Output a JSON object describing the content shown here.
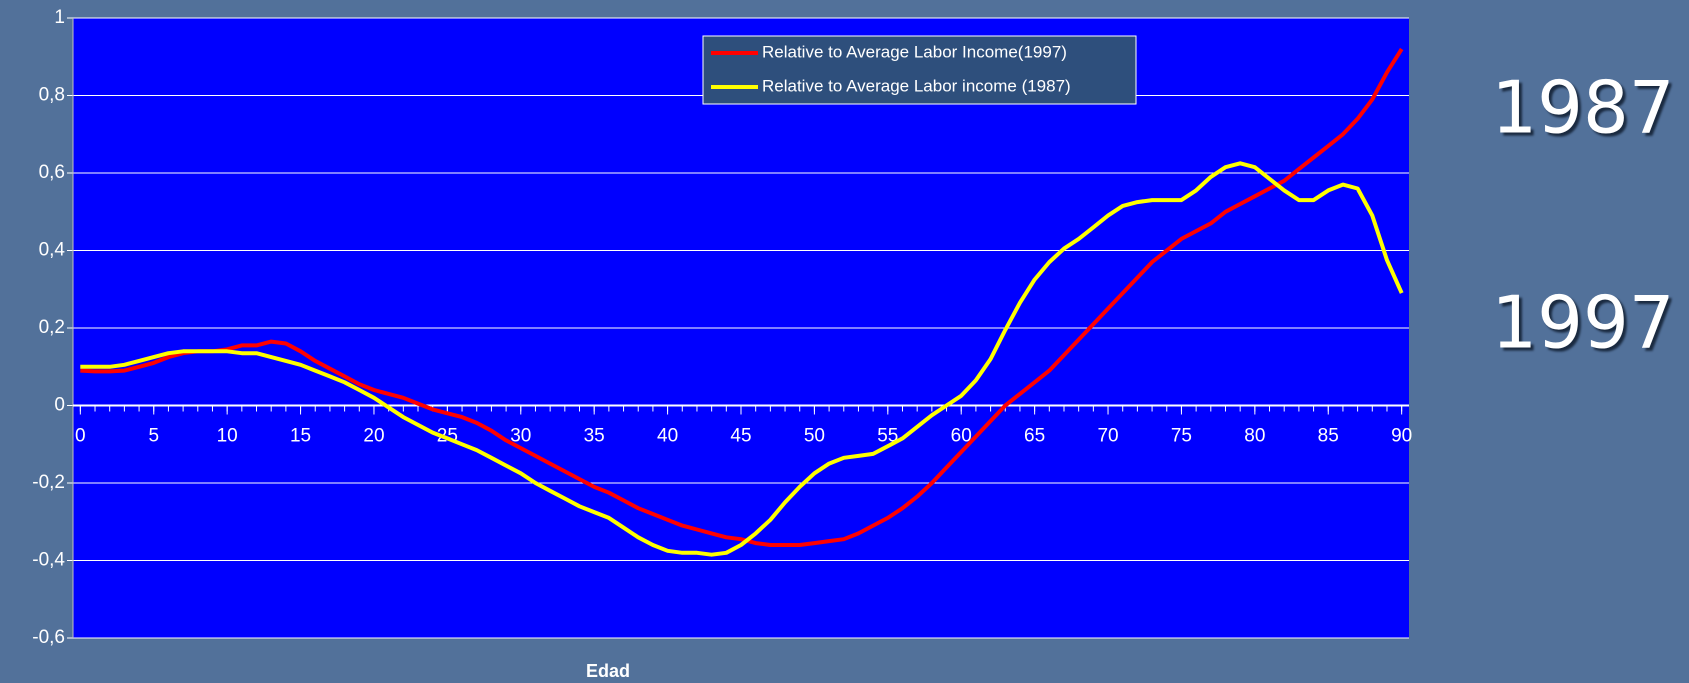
{
  "chart_data": {
    "type": "line",
    "x_label": "Edad",
    "annotations": [
      "1987",
      "1997"
    ],
    "x": [
      0,
      1,
      2,
      3,
      4,
      5,
      6,
      7,
      8,
      9,
      10,
      11,
      12,
      13,
      14,
      15,
      16,
      17,
      18,
      19,
      20,
      21,
      22,
      23,
      24,
      25,
      26,
      27,
      28,
      29,
      30,
      31,
      32,
      33,
      34,
      35,
      36,
      37,
      38,
      39,
      40,
      41,
      42,
      43,
      44,
      45,
      46,
      47,
      48,
      49,
      50,
      51,
      52,
      53,
      54,
      55,
      56,
      57,
      58,
      59,
      60,
      61,
      62,
      63,
      64,
      65,
      66,
      67,
      68,
      69,
      70,
      71,
      72,
      73,
      74,
      75,
      76,
      77,
      78,
      79,
      80,
      81,
      82,
      83,
      84,
      85,
      86,
      87,
      88,
      89,
      90
    ],
    "xlim": [
      -0.5,
      90.5
    ],
    "xticks": [
      0,
      5,
      10,
      15,
      20,
      25,
      30,
      35,
      40,
      45,
      50,
      55,
      60,
      65,
      70,
      75,
      80,
      85,
      90
    ],
    "ylim": [
      -0.6,
      1
    ],
    "yticks": [
      {
        "value": -0.6,
        "label": "-0,6"
      },
      {
        "value": -0.4,
        "label": "-0,4"
      },
      {
        "value": -0.2,
        "label": "-0,2"
      },
      0,
      {
        "value": 0.2,
        "label": "0,2"
      },
      {
        "value": 0.4,
        "label": "0,4"
      },
      {
        "value": 0.6,
        "label": "0,6"
      },
      {
        "value": 0.8,
        "label": "0,8"
      },
      1
    ],
    "grid": true,
    "legend": "upper center",
    "background": "#0000ff",
    "series": [
      {
        "name": "Relative to Average Labor Income(1997)",
        "color": "#ff0000",
        "values": [
          0.09,
          0.088,
          0.088,
          0.09,
          0.1,
          0.11,
          0.125,
          0.135,
          0.14,
          0.14,
          0.145,
          0.155,
          0.155,
          0.165,
          0.16,
          0.14,
          0.115,
          0.095,
          0.075,
          0.055,
          0.04,
          0.03,
          0.02,
          0.005,
          -0.01,
          -0.02,
          -0.03,
          -0.045,
          -0.065,
          -0.09,
          -0.11,
          -0.13,
          -0.15,
          -0.17,
          -0.19,
          -0.21,
          -0.225,
          -0.245,
          -0.265,
          -0.28,
          -0.295,
          -0.31,
          -0.32,
          -0.33,
          -0.34,
          -0.345,
          -0.355,
          -0.36,
          -0.36,
          -0.36,
          -0.355,
          -0.35,
          -0.345,
          -0.33,
          -0.31,
          -0.29,
          -0.265,
          -0.235,
          -0.2,
          -0.16,
          -0.12,
          -0.08,
          -0.04,
          0,
          0.03,
          0.06,
          0.09,
          0.13,
          0.17,
          0.21,
          0.25,
          0.29,
          0.33,
          0.37,
          0.4,
          0.43,
          0.45,
          0.47,
          0.5,
          0.52,
          0.54,
          0.56,
          0.58,
          0.61,
          0.64,
          0.67,
          0.7,
          0.74,
          0.79,
          0.86,
          0.92
        ]
      },
      {
        "name": "Relative to Average Labor income (1987)",
        "color": "#ffff00",
        "values": [
          0.1,
          0.1,
          0.1,
          0.105,
          0.115,
          0.125,
          0.135,
          0.14,
          0.14,
          0.14,
          0.14,
          0.135,
          0.135,
          0.125,
          0.115,
          0.105,
          0.09,
          0.075,
          0.06,
          0.04,
          0.02,
          -0.005,
          -0.03,
          -0.05,
          -0.07,
          -0.085,
          -0.1,
          -0.115,
          -0.135,
          -0.155,
          -0.175,
          -0.2,
          -0.22,
          -0.24,
          -0.26,
          -0.275,
          -0.29,
          -0.315,
          -0.34,
          -0.36,
          -0.375,
          -0.38,
          -0.38,
          -0.385,
          -0.38,
          -0.36,
          -0.33,
          -0.295,
          -0.25,
          -0.21,
          -0.175,
          -0.15,
          -0.135,
          -0.13,
          -0.125,
          -0.105,
          -0.085,
          -0.055,
          -0.025,
          0,
          0.025,
          0.065,
          0.12,
          0.195,
          0.265,
          0.325,
          0.37,
          0.405,
          0.43,
          0.46,
          0.49,
          0.515,
          0.525,
          0.53,
          0.53,
          0.53,
          0.555,
          0.59,
          0.615,
          0.625,
          0.615,
          0.585,
          0.555,
          0.53,
          0.53,
          0.555,
          0.57,
          0.56,
          0.49,
          0.375,
          0.29
        ]
      }
    ]
  }
}
